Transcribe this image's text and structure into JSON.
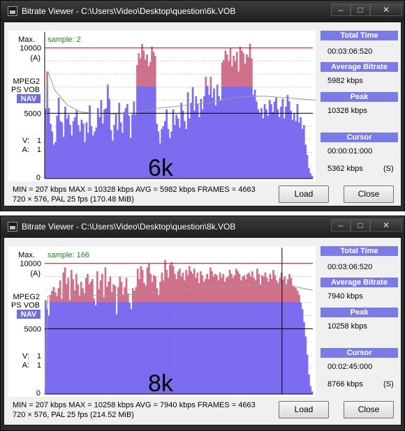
{
  "windows": [
    {
      "title": "Bitrate Viewer - C:\\Users\\Video\\Desktop\\question\\6k.VOB",
      "graph": {
        "max_label": "Max.",
        "max_value": "10000",
        "a_label": "(A)",
        "codec_line1": "MPEG2",
        "codec_line2": "PS VOB",
        "nav": "NAV",
        "mid_value": "5000",
        "v_label": "V:",
        "v_value": "1",
        "a2_label": "A:",
        "a2_value": "1",
        "zero": "0",
        "sample": "sample: 2",
        "overlay": "6k"
      },
      "sidebar": {
        "total_time_label": "Total Time",
        "total_time": "00:03:06:520",
        "avg_label": "Average Bitrate",
        "avg": "5982 kbps",
        "peak_label": "Peak",
        "peak": "10328 kbps",
        "cursor_label": "Cursor",
        "cursor_time": "00:00:01:000",
        "cursor_rate": "5362 kbps",
        "cursor_flag": "(S)"
      },
      "stats_line1": "MIN = 207 kbps  MAX = 10328 kbps  AVG = 5982 kbps  FRAMES = 4663",
      "stats_line2": "720 × 576, PAL 25 fps    (170.48 MiB)",
      "load_label": "Load",
      "close_label": "Close",
      "chart_data": {
        "type": "bar",
        "ylim": [
          0,
          11000
        ],
        "cursor_position": 0.0,
        "values": [
          5362,
          8200,
          5400,
          4200,
          3600,
          2600,
          2800,
          4800,
          6200,
          4400,
          4300,
          3200,
          5500,
          4600,
          4900,
          4100,
          3300,
          4400,
          4700,
          5200,
          4100,
          3600,
          4500,
          4200,
          2800,
          4300,
          3500,
          5600,
          4000,
          3300,
          3600,
          3900,
          5400,
          4700,
          6000,
          4200,
          5300,
          5400,
          7200,
          6100,
          3700,
          2900,
          4100,
          4900,
          3700,
          5800,
          4300,
          3500,
          5100,
          5400,
          5700,
          4800,
          3100,
          4900,
          5900,
          4900,
          8700,
          9600,
          9200,
          10300,
          9800,
          9100,
          9500,
          8600,
          8900,
          10100,
          9700,
          9400,
          4200,
          3600,
          2700,
          3800,
          4000,
          4400,
          5300,
          3800,
          3100,
          3600,
          5300,
          4100,
          4900,
          4600,
          3900,
          5800,
          5200,
          4400,
          3800,
          6600,
          4600,
          5800,
          7000,
          5200,
          6300,
          5700,
          4700,
          6100,
          5300,
          6300,
          7800,
          7100,
          6400,
          7800,
          6200,
          6900,
          5600,
          7200,
          6300,
          6000,
          8900,
          9100,
          9800,
          9500,
          9000,
          10000,
          8600,
          9400,
          9000,
          9700,
          8200,
          10100,
          9800,
          9600,
          8800,
          9500,
          9300,
          10328,
          9200,
          6400,
          6800,
          5900,
          5300,
          5000,
          5400,
          4600,
          5700,
          5300,
          4800,
          6000,
          5700,
          5100,
          5900,
          6200,
          5300,
          4700,
          5500,
          6100,
          4600,
          5500,
          6400,
          5900,
          5200,
          4500,
          5000,
          4400,
          5700,
          4300,
          4700,
          3800,
          4100,
          2600,
          1800,
          800,
          400,
          207
        ],
        "avg_curve": [
          [
            0,
            0
          ],
          [
            2,
            8200
          ],
          [
            6,
            6800
          ],
          [
            14,
            5600
          ],
          [
            22,
            5100
          ],
          [
            30,
            5000
          ],
          [
            40,
            4900
          ],
          [
            55,
            5050
          ],
          [
            70,
            5400
          ],
          [
            85,
            5600
          ],
          [
            100,
            5800
          ],
          [
            115,
            6200
          ],
          [
            125,
            6300
          ],
          [
            135,
            6300
          ],
          [
            145,
            6200
          ],
          [
            165,
            6000
          ],
          [
            165,
            5982
          ]
        ]
      }
    },
    {
      "title": "Bitrate Viewer - C:\\Users\\Video\\Desktop\\question\\8k.VOB",
      "graph": {
        "max_label": "Max.",
        "max_value": "10000",
        "a_label": "(A)",
        "codec_line1": "MPEG2",
        "codec_line2": "PS VOB",
        "nav": "NAV",
        "mid_value": "5000",
        "v_label": "V:",
        "v_value": "1",
        "a2_label": "A:",
        "a2_value": "1",
        "zero": "0",
        "sample": "sample: 166",
        "overlay": "8k"
      },
      "sidebar": {
        "total_time_label": "Total Time",
        "total_time": "00:03:06:520",
        "avg_label": "Average Bitrate",
        "avg": "7940 kbps",
        "peak_label": "Peak",
        "peak": "10258 kbps",
        "cursor_label": "Cursor",
        "cursor_time": "00:02:45:000",
        "cursor_rate": "8766 kbps",
        "cursor_flag": "(S)"
      },
      "stats_line1": "MIN = 207 kbps  MAX = 10258 kbps  AVG = 7940 kbps  FRAMES = 4663",
      "stats_line2": "720 × 576, PAL 25 fps    (214.52 MiB)",
      "load_label": "Load",
      "close_label": "Close",
      "chart_data": {
        "type": "bar",
        "ylim": [
          0,
          11000
        ],
        "cursor_position": 0.885,
        "values": [
          7200,
          6500,
          6000,
          7600,
          7900,
          8200,
          7800,
          7500,
          8100,
          8700,
          7300,
          9300,
          9700,
          8400,
          8900,
          7200,
          9500,
          8800,
          7900,
          9200,
          8400,
          7500,
          8600,
          8100,
          7700,
          8900,
          9200,
          8400,
          8600,
          8800,
          7300,
          6800,
          9400,
          8000,
          8700,
          9200,
          7400,
          9700,
          8200,
          8600,
          9000,
          7800,
          8400,
          8300,
          6100,
          8200,
          9000,
          8600,
          7600,
          8200,
          8900,
          7700,
          7000,
          6500,
          8100,
          7900,
          8200,
          9600,
          8800,
          9800,
          9500,
          8500,
          8300,
          9700,
          10000,
          9200,
          8600,
          9100,
          9000,
          8100,
          7600,
          8600,
          9300,
          8700,
          10258,
          9500,
          8900,
          9900,
          10100,
          9800,
          9200,
          8800,
          9400,
          9600,
          9000,
          9300,
          8700,
          9500,
          9100,
          9800,
          9400,
          9200,
          9600,
          8900,
          9300,
          8500,
          9400,
          9100,
          8600,
          8800,
          9200,
          8800,
          9700,
          9400,
          9000,
          9200,
          9100,
          8700,
          9300,
          8900,
          9200,
          8600,
          8900,
          9000,
          9500,
          9200,
          8900,
          9100,
          9600,
          9400,
          9200,
          8700,
          9000,
          9100,
          8800,
          9200,
          9300,
          9000,
          9400,
          8900,
          8700,
          9600,
          9200,
          8400,
          9100,
          9000,
          9300,
          8900,
          8600,
          9200,
          8800,
          9500,
          9100,
          8700,
          8500,
          8900,
          9300,
          8766,
          9000,
          8400,
          8800,
          9200,
          8900,
          8300,
          8200,
          8100,
          7900,
          7600,
          7000,
          6500,
          5500,
          4400,
          3000,
          1500,
          600,
          207
        ],
        "avg_curve": [
          [
            0,
            0
          ],
          [
            2,
            7500
          ],
          [
            10,
            7700
          ],
          [
            20,
            7600
          ],
          [
            40,
            7500
          ],
          [
            60,
            7700
          ],
          [
            80,
            7900
          ],
          [
            100,
            8200
          ],
          [
            120,
            8300
          ],
          [
            140,
            8300
          ],
          [
            155,
            8200
          ],
          [
            165,
            7940
          ]
        ]
      }
    }
  ]
}
